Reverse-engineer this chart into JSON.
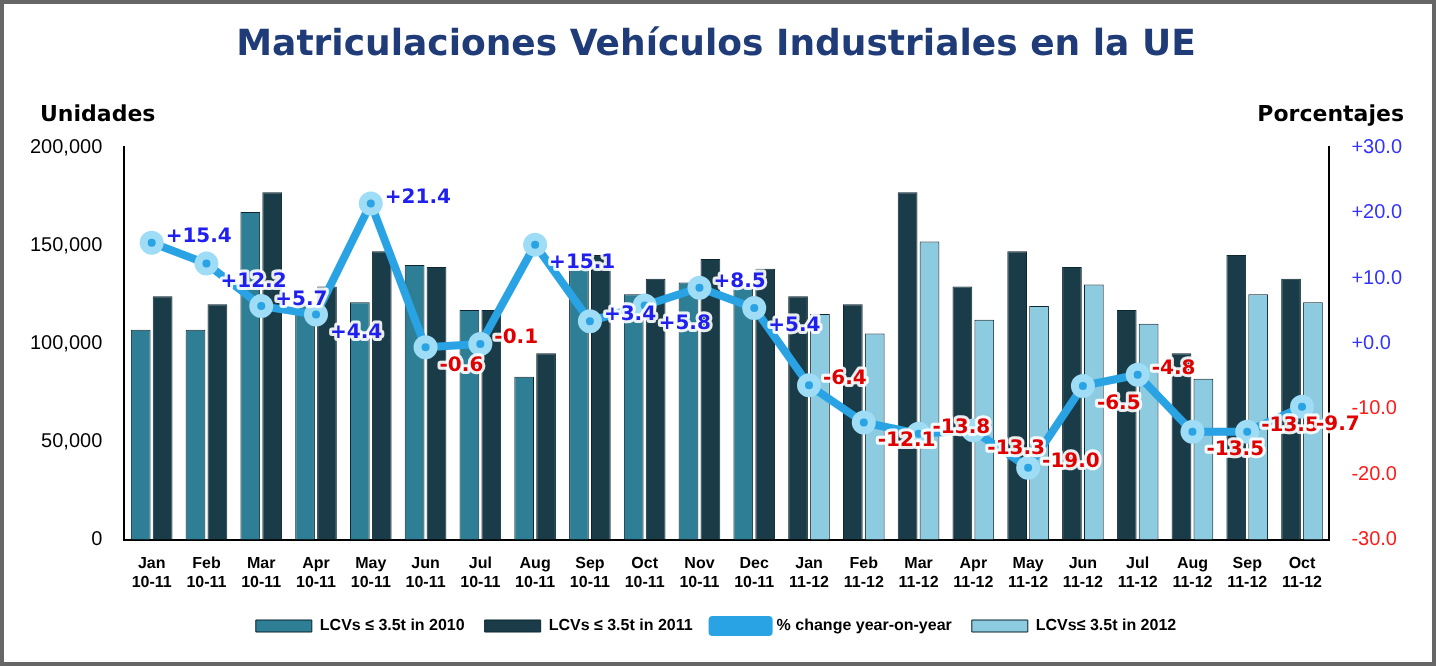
{
  "chart_data": {
    "type": "bar",
    "title": "Matriculaciones Vehículos Industriales en la UE",
    "ylabel": "Unidades",
    "y2label": "Porcentajes",
    "categories": [
      "Jan 10-11",
      "Feb 10-11",
      "Mar 10-11",
      "Apr 10-11",
      "May 10-11",
      "Jun 10-11",
      "Jul 10-11",
      "Aug 10-11",
      "Sep 10-11",
      "Oct 10-11",
      "Nov 10-11",
      "Dec 10-11",
      "Jan 11-12",
      "Feb 11-12",
      "Mar 11-12",
      "Apr 11-12",
      "May 11-12",
      "Jun 11-12",
      "Jul 11-12",
      "Aug 11-12",
      "Sep 11-12",
      "Oct 11-12"
    ],
    "series": [
      {
        "name": "LCVs ≤ 3.5t in 2010",
        "color": "#2e7f95",
        "values": [
          107000,
          107000,
          167000,
          121000,
          121000,
          140000,
          117000,
          83000,
          139000,
          125000,
          131000,
          129000,
          null,
          null,
          null,
          null,
          null,
          null,
          null,
          null,
          null,
          null
        ]
      },
      {
        "name": "LCVs ≤ 3.5t in 2011",
        "color": "#1a3c48",
        "values": [
          124000,
          120000,
          177000,
          129000,
          147000,
          139000,
          117000,
          95000,
          145000,
          133000,
          143000,
          138000,
          124000,
          120000,
          177000,
          129000,
          147000,
          139000,
          117000,
          95000,
          145000,
          133000
        ]
      },
      {
        "name": "% change year-on-year",
        "type": "line",
        "axis": "y2",
        "color": "#29a3e3",
        "values": [
          15.4,
          12.2,
          5.7,
          4.4,
          21.4,
          -0.6,
          -0.1,
          15.1,
          3.4,
          5.8,
          8.5,
          5.4,
          -6.4,
          -12.1,
          -13.8,
          -13.3,
          -19.0,
          -6.5,
          -4.8,
          -13.5,
          -13.5,
          -9.7
        ],
        "value_labels": [
          "+15.4",
          "+12.2",
          "+5.7",
          "+4.4",
          "+21.4",
          "-0.6",
          "-0.1",
          "+15.1",
          "+3.4",
          "+5.8",
          "+8.5",
          "+5.4",
          "-6.4",
          "-12.1",
          "-13.8",
          "-13.3",
          "-19.0",
          "-6.5",
          "-4.8",
          "-13.5",
          "-13.5",
          "-9.7"
        ]
      },
      {
        "name": "LCVs≤ 3.5t in 2012",
        "color": "#8ccbe0",
        "values": [
          null,
          null,
          null,
          null,
          null,
          null,
          null,
          null,
          null,
          null,
          null,
          null,
          115000,
          105000,
          152000,
          112000,
          119000,
          130000,
          110000,
          82000,
          125000,
          121000
        ]
      }
    ],
    "ylim": [
      0,
      200000
    ],
    "yticks": [
      0,
      {
        "value": 50000,
        "label": "50,000"
      },
      {
        "value": 100000,
        "label": "100,000"
      },
      {
        "value": 150000,
        "label": "150,000"
      },
      {
        "value": 200000,
        "label": "200,000"
      }
    ],
    "y2lim": [
      -30,
      30
    ],
    "y2ticks": [
      {
        "value": -30,
        "label": "-30.0"
      },
      {
        "value": -20,
        "label": "-20.0"
      },
      {
        "value": -10,
        "label": "-10.0"
      },
      {
        "value": 0,
        "label": "+0.0"
      },
      {
        "value": 10,
        "label": "+10.0"
      },
      {
        "value": 20,
        "label": "+20.0"
      },
      {
        "value": 30,
        "label": "+30.0"
      }
    ],
    "marker": "circle",
    "grid": false,
    "legend": "bottom"
  }
}
